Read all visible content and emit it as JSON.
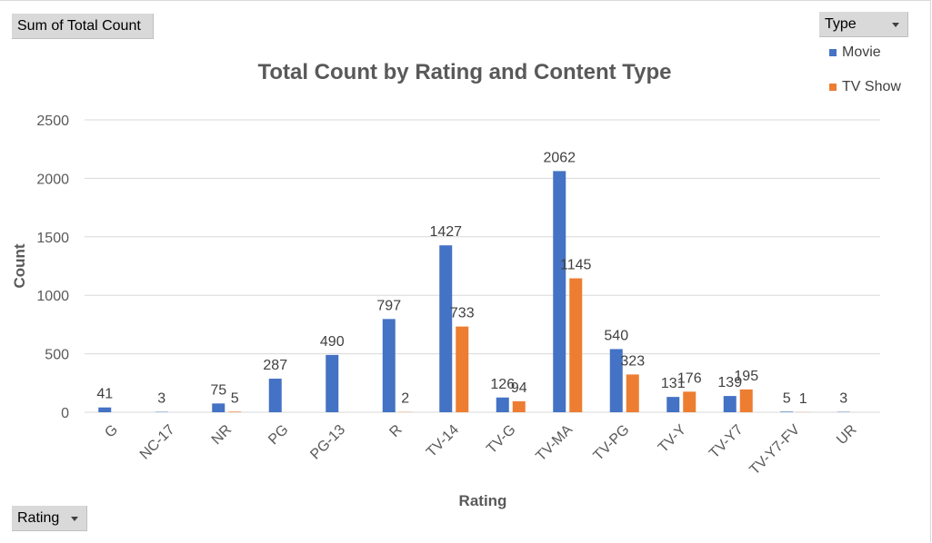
{
  "pivot": {
    "values_field_label": "Sum of Total Count",
    "row_field_label": "Rating",
    "column_field_label": "Type"
  },
  "chart_data": {
    "type": "bar",
    "title": "Total Count by Rating and Content Type",
    "xlabel": "Rating",
    "ylabel": "Count",
    "ylim": [
      0,
      2500
    ],
    "yticks": [
      0,
      500,
      1000,
      1500,
      2000,
      2500
    ],
    "grid": true,
    "legend_position": "top-right",
    "categories": [
      "G",
      "NC-17",
      "NR",
      "PG",
      "PG-13",
      "R",
      "TV-14",
      "TV-G",
      "TV-MA",
      "TV-PG",
      "TV-Y",
      "TV-Y7",
      "TV-Y7-FV",
      "UR"
    ],
    "series": [
      {
        "name": "Movie",
        "color": "#4472c4",
        "values": [
          41,
          3,
          75,
          287,
          490,
          797,
          1427,
          126,
          2062,
          540,
          131,
          139,
          5,
          3
        ]
      },
      {
        "name": "TV Show",
        "color": "#ed7d31",
        "values": [
          null,
          null,
          5,
          null,
          null,
          2,
          733,
          94,
          1145,
          323,
          176,
          195,
          1,
          null
        ]
      }
    ]
  }
}
